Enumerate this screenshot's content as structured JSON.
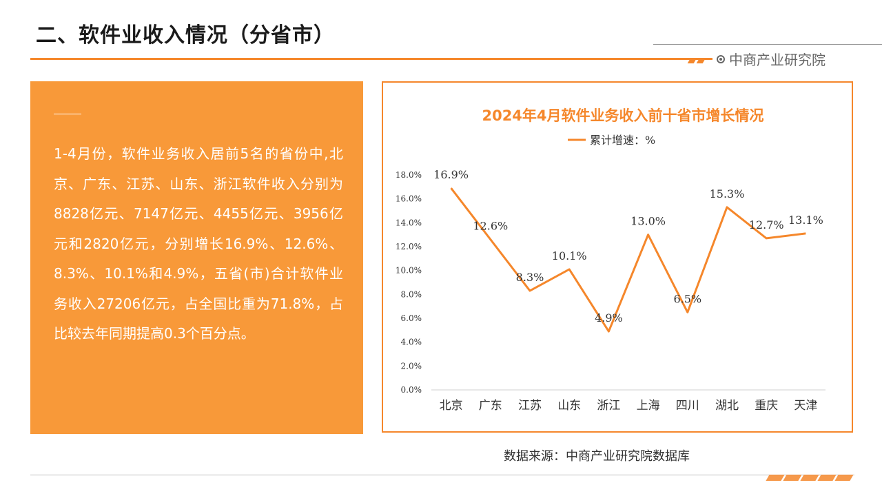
{
  "page": {
    "title": "二、软件业收入情况（分省市）",
    "brand": "中商产业研究院",
    "brand_icon": "target-icon",
    "accent_color": "#f5872b",
    "panel_color": "#f89939"
  },
  "summary": {
    "text": "1-4月份，软件业务收入居前5名的省份中,北京、广东、江苏、山东、浙江软件收入分别为8828亿元、7147亿元、4455亿元、3956亿元和2820亿元，分别增长16.9%、12.6%、8.3%、10.1%和4.9%，五省(市)合计软件业务收入27206亿元，占全国比重为71.8%，占比较去年同期提高0.3个百分点。"
  },
  "chart_data": {
    "type": "line",
    "title": "2024年4月软件业务收入前十省市增长情况",
    "categories": [
      "北京",
      "广东",
      "江苏",
      "山东",
      "浙江",
      "上海",
      "四川",
      "湖北",
      "重庆",
      "天津"
    ],
    "series": [
      {
        "name": "累计增速：%",
        "values": [
          16.9,
          12.6,
          8.3,
          10.1,
          4.9,
          13.0,
          6.5,
          15.3,
          12.7,
          13.1
        ],
        "labels": [
          "16.9%",
          "12.6%",
          "8.3%",
          "10.1%",
          "4.9%",
          "13.0%",
          "6.5%",
          "15.3%",
          "12.7%",
          "13.1%"
        ],
        "color": "#f5872b"
      }
    ],
    "ylim": [
      0,
      18
    ],
    "yticks": [
      "0.0%",
      "2.0%",
      "4.0%",
      "6.0%",
      "8.0%",
      "10.0%",
      "12.0%",
      "14.0%",
      "16.0%",
      "18.0%"
    ],
    "grid": false,
    "legend": "top-center"
  },
  "source": "数据来源：中商产业研究院数据库"
}
